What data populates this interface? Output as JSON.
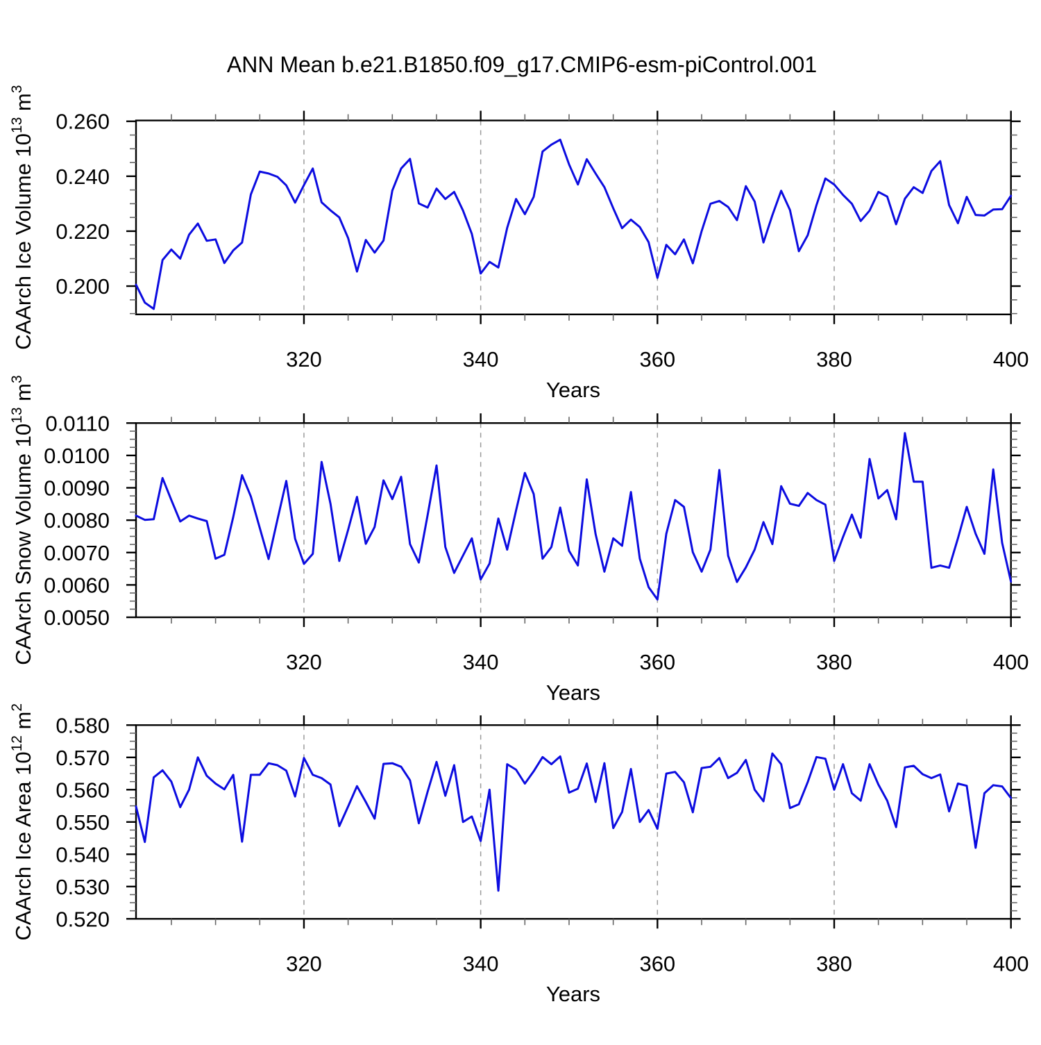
{
  "title": "ANN Mean b.e21.B1850.f09_g17.CMIP6-esm-piControl.001",
  "line_color": "#0c0ce0",
  "grid_color": "#9a9a9a",
  "axis_color": "#000000",
  "chart_data": [
    {
      "type": "line",
      "title": "",
      "xlabel": "Years",
      "ylabel": "CAArch Ice Volume 10^13 m^3",
      "ylabel_segments": [
        [
          "CAArch Ice Volume 10",
          false
        ],
        [
          "13",
          true
        ],
        [
          " m",
          false
        ],
        [
          "3",
          true
        ]
      ],
      "x_ticks": [
        "320",
        "340",
        "360",
        "380",
        "400"
      ],
      "y_ticks": [
        "0.200",
        "0.220",
        "0.240",
        "0.260"
      ],
      "xlim": [
        301,
        400
      ],
      "ylim": [
        0.1897,
        0.2603
      ],
      "grid": "vertical-dashed-at-x-majors-except-400",
      "x_start": 301,
      "values": [
        0.2005,
        0.194,
        0.1917,
        0.2095,
        0.2133,
        0.21,
        0.2187,
        0.2228,
        0.2165,
        0.217,
        0.2084,
        0.213,
        0.2159,
        0.2334,
        0.2417,
        0.241,
        0.2398,
        0.2367,
        0.2304,
        0.2368,
        0.2428,
        0.2305,
        0.2276,
        0.225,
        0.2175,
        0.2053,
        0.2168,
        0.2122,
        0.2166,
        0.2348,
        0.2428,
        0.2463,
        0.2301,
        0.2286,
        0.2355,
        0.2317,
        0.2343,
        0.2275,
        0.219,
        0.2046,
        0.2088,
        0.2068,
        0.2212,
        0.2317,
        0.2262,
        0.2325,
        0.249,
        0.2515,
        0.2533,
        0.2443,
        0.237,
        0.2462,
        0.241,
        0.236,
        0.2283,
        0.2211,
        0.2242,
        0.2215,
        0.216,
        0.203,
        0.215,
        0.2116,
        0.217,
        0.2083,
        0.22,
        0.23,
        0.231,
        0.2288,
        0.224,
        0.2364,
        0.2308,
        0.2159,
        0.2258,
        0.2347,
        0.2277,
        0.2127,
        0.2185,
        0.2295,
        0.2392,
        0.237,
        0.2332,
        0.23,
        0.2237,
        0.2275,
        0.2343,
        0.2326,
        0.2225,
        0.2318,
        0.236,
        0.2339,
        0.2419,
        0.2455,
        0.2295,
        0.2229,
        0.2325,
        0.2259,
        0.2257,
        0.2279,
        0.228,
        0.2329
      ]
    },
    {
      "type": "line",
      "title": "",
      "xlabel": "Years",
      "ylabel": "CAArch Snow Volume 10^13 m^3",
      "ylabel_segments": [
        [
          "CAArch Snow Volume 10",
          false
        ],
        [
          "13",
          true
        ],
        [
          " m",
          false
        ],
        [
          "3",
          true
        ]
      ],
      "x_ticks": [
        "320",
        "340",
        "360",
        "380",
        "400"
      ],
      "y_ticks": [
        "0.0050",
        "0.0060",
        "0.0070",
        "0.0080",
        "0.0090",
        "0.0100",
        "0.0110"
      ],
      "xlim": [
        301,
        400
      ],
      "ylim": [
        0.005,
        0.011
      ],
      "grid": "vertical-dashed-at-x-majors-except-400",
      "x_start": 301,
      "values": [
        0.00814,
        0.00801,
        0.00803,
        0.0093,
        0.00862,
        0.00796,
        0.00814,
        0.00805,
        0.00797,
        0.00681,
        0.00693,
        0.0081,
        0.00939,
        0.00873,
        0.00776,
        0.0068,
        0.00801,
        0.00921,
        0.00743,
        0.00665,
        0.00696,
        0.0098,
        0.00851,
        0.00674,
        0.0077,
        0.00872,
        0.00727,
        0.00779,
        0.00923,
        0.00865,
        0.00934,
        0.00726,
        0.00669,
        0.00816,
        0.00969,
        0.00717,
        0.00637,
        0.00691,
        0.00744,
        0.00617,
        0.00666,
        0.00805,
        0.00709,
        0.0083,
        0.00946,
        0.00881,
        0.00681,
        0.00717,
        0.00839,
        0.00705,
        0.0066,
        0.00926,
        0.00757,
        0.00641,
        0.00744,
        0.00721,
        0.00887,
        0.00681,
        0.00593,
        0.00555,
        0.00758,
        0.00862,
        0.00841,
        0.00701,
        0.00641,
        0.00709,
        0.00955,
        0.0069,
        0.00609,
        0.00654,
        0.00709,
        0.00794,
        0.00726,
        0.00905,
        0.00851,
        0.00844,
        0.00884,
        0.00862,
        0.00848,
        0.00674,
        0.00748,
        0.00817,
        0.00746,
        0.00989,
        0.00867,
        0.00893,
        0.00803,
        0.01069,
        0.00919,
        0.00919,
        0.00653,
        0.0066,
        0.00653,
        0.00744,
        0.00841,
        0.00758,
        0.00696,
        0.00957,
        0.0073,
        0.0061
      ]
    },
    {
      "type": "line",
      "title": "",
      "xlabel": "Years",
      "ylabel": "CAArch Ice Area 10^12 m^2",
      "ylabel_segments": [
        [
          "CAArch Ice Area 10",
          false
        ],
        [
          "12",
          true
        ],
        [
          " m",
          false
        ],
        [
          "2",
          true
        ]
      ],
      "x_ticks": [
        "320",
        "340",
        "360",
        "380",
        "400"
      ],
      "y_ticks": [
        "0.520",
        "0.530",
        "0.540",
        "0.550",
        "0.560",
        "0.570",
        "0.580"
      ],
      "xlim": [
        301,
        400
      ],
      "ylim": [
        0.52,
        0.58
      ],
      "grid": "vertical-dashed-at-x-majors-except-400",
      "x_start": 301,
      "values": [
        0.5548,
        0.5438,
        0.5638,
        0.566,
        0.5625,
        0.5546,
        0.56,
        0.57,
        0.5643,
        0.5619,
        0.5601,
        0.5646,
        0.5439,
        0.5646,
        0.5646,
        0.5682,
        0.5676,
        0.5659,
        0.5579,
        0.5698,
        0.5646,
        0.5636,
        0.5616,
        0.5487,
        0.5548,
        0.5611,
        0.5562,
        0.551,
        0.568,
        0.5682,
        0.5671,
        0.5629,
        0.5496,
        0.5594,
        0.5686,
        0.5581,
        0.5676,
        0.55,
        0.5517,
        0.5441,
        0.56,
        0.5287,
        0.5679,
        0.5662,
        0.5619,
        0.5657,
        0.5701,
        0.5679,
        0.5703,
        0.5591,
        0.5603,
        0.5681,
        0.5562,
        0.5682,
        0.5481,
        0.5531,
        0.5664,
        0.55,
        0.5537,
        0.5479,
        0.565,
        0.5655,
        0.5623,
        0.553,
        0.5667,
        0.5671,
        0.5698,
        0.5636,
        0.5652,
        0.5692,
        0.56,
        0.5564,
        0.5712,
        0.5679,
        0.5543,
        0.5555,
        0.5623,
        0.5701,
        0.5696,
        0.56,
        0.5679,
        0.5589,
        0.5566,
        0.5679,
        0.5616,
        0.5566,
        0.5484,
        0.5669,
        0.5674,
        0.5648,
        0.5636,
        0.5647,
        0.5533,
        0.5619,
        0.5612,
        0.542,
        0.5589,
        0.5614,
        0.561,
        0.5574
      ]
    }
  ]
}
